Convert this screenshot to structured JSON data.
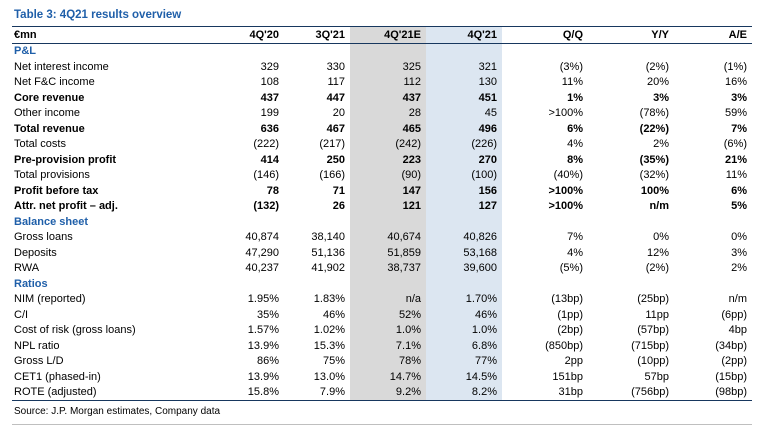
{
  "title": "Table 3: 4Q21 results overview",
  "source": "Source: J.P. Morgan estimates, Company data",
  "colors": {
    "heading_blue": "#1f5fa9",
    "rule_navy": "#17375e",
    "estimate_column_shade": "#d9d9d9",
    "actual_column_shade": "#dce6f1"
  },
  "table": {
    "columns": [
      "€mn",
      "4Q'20",
      "3Q'21",
      "4Q'21E",
      "4Q'21",
      "Q/Q",
      "Y/Y",
      "A/E"
    ],
    "highlight_columns": {
      "estimate": "4Q'21E",
      "actual": "4Q'21"
    },
    "sections": [
      {
        "name": "P&L",
        "rows": [
          {
            "label": "Net interest income",
            "bold": false,
            "values": [
              "329",
              "330",
              "325",
              "321",
              "(3%)",
              "(2%)",
              "(1%)"
            ]
          },
          {
            "label": "Net F&C income",
            "bold": false,
            "values": [
              "108",
              "117",
              "112",
              "130",
              "11%",
              "20%",
              "16%"
            ]
          },
          {
            "label": "Core revenue",
            "bold": true,
            "values": [
              "437",
              "447",
              "437",
              "451",
              "1%",
              "3%",
              "3%"
            ]
          },
          {
            "label": "Other income",
            "bold": false,
            "values": [
              "199",
              "20",
              "28",
              "45",
              ">100%",
              "(78%)",
              "59%"
            ]
          },
          {
            "label": "Total revenue",
            "bold": true,
            "values": [
              "636",
              "467",
              "465",
              "496",
              "6%",
              "(22%)",
              "7%"
            ]
          },
          {
            "label": "Total costs",
            "bold": false,
            "values": [
              "(222)",
              "(217)",
              "(242)",
              "(226)",
              "4%",
              "2%",
              "(6%)"
            ]
          },
          {
            "label": "Pre-provision profit",
            "bold": true,
            "values": [
              "414",
              "250",
              "223",
              "270",
              "8%",
              "(35%)",
              "21%"
            ]
          },
          {
            "label": "Total provisions",
            "bold": false,
            "values": [
              "(146)",
              "(166)",
              "(90)",
              "(100)",
              "(40%)",
              "(32%)",
              "11%"
            ]
          },
          {
            "label": "Profit before tax",
            "bold": true,
            "values": [
              "78",
              "71",
              "147",
              "156",
              ">100%",
              "100%",
              "6%"
            ]
          },
          {
            "label": "Attr. net profit – adj.",
            "bold": true,
            "values": [
              "(132)",
              "26",
              "121",
              "127",
              ">100%",
              "n/m",
              "5%"
            ]
          }
        ]
      },
      {
        "name": "Balance sheet",
        "rows": [
          {
            "label": "Gross loans",
            "bold": false,
            "values": [
              "40,874",
              "38,140",
              "40,674",
              "40,826",
              "7%",
              "0%",
              "0%"
            ]
          },
          {
            "label": "Deposits",
            "bold": false,
            "values": [
              "47,290",
              "51,136",
              "51,859",
              "53,168",
              "4%",
              "12%",
              "3%"
            ]
          },
          {
            "label": "RWA",
            "bold": false,
            "values": [
              "40,237",
              "41,902",
              "38,737",
              "39,600",
              "(5%)",
              "(2%)",
              "2%"
            ]
          }
        ]
      },
      {
        "name": "Ratios",
        "rows": [
          {
            "label": "NIM (reported)",
            "bold": false,
            "values": [
              "1.95%",
              "1.83%",
              "n/a",
              "1.70%",
              "(13bp)",
              "(25bp)",
              "n/m"
            ]
          },
          {
            "label": "C/I",
            "bold": false,
            "values": [
              "35%",
              "46%",
              "52%",
              "46%",
              "(1pp)",
              "11pp",
              "(6pp)"
            ]
          },
          {
            "label": "Cost of risk (gross loans)",
            "bold": false,
            "values": [
              "1.57%",
              "1.02%",
              "1.0%",
              "1.0%",
              "(2bp)",
              "(57bp)",
              "4bp"
            ]
          },
          {
            "label": "NPL ratio",
            "bold": false,
            "values": [
              "13.9%",
              "15.3%",
              "7.1%",
              "6.8%",
              "(850bp)",
              "(715bp)",
              "(34bp)"
            ]
          },
          {
            "label": "Gross L/D",
            "bold": false,
            "values": [
              "86%",
              "75%",
              "78%",
              "77%",
              "2pp",
              "(10pp)",
              "(2pp)"
            ]
          },
          {
            "label": "CET1 (phased-in)",
            "bold": false,
            "values": [
              "13.9%",
              "13.0%",
              "14.7%",
              "14.5%",
              "151bp",
              "57bp",
              "(15bp)"
            ]
          },
          {
            "label": "ROTE (adjusted)",
            "bold": false,
            "values": [
              "15.8%",
              "7.9%",
              "9.2%",
              "8.2%",
              "31bp",
              "(756bp)",
              "(98bp)"
            ]
          }
        ]
      }
    ]
  }
}
